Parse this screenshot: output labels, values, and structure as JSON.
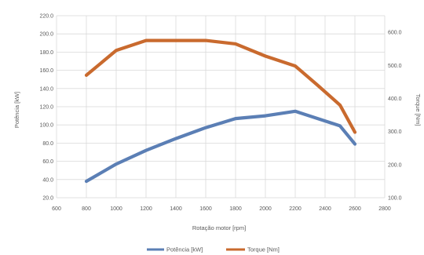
{
  "chart_data": {
    "type": "line",
    "title": "",
    "xlabel": "Rotação motor [rpm]",
    "ylabel_left": "Potência [kW]",
    "ylabel_right": "Torque [Nm]",
    "xlim": [
      600,
      2800
    ],
    "xticks": [
      "600",
      "800",
      "1000",
      "1200",
      "1400",
      "1600",
      "1800",
      "2000",
      "2200",
      "2400",
      "2600",
      "2800"
    ],
    "ylim_left": [
      20,
      220
    ],
    "yticks_left": [
      "20.0",
      "40.0",
      "60.0",
      "80.0",
      "100.0",
      "120.0",
      "140.0",
      "160.0",
      "180.0",
      "200.0",
      "220.0"
    ],
    "ylim_right": [
      100,
      650
    ],
    "yticks_right": [
      "100.0",
      "200.0",
      "300.0",
      "400.0",
      "500.0",
      "600.0"
    ],
    "grid": true,
    "legend_position": "bottom",
    "series": [
      {
        "name": "Potência [kW]",
        "axis": "left",
        "color": "#5b7fb5",
        "x": [
          800,
          1000,
          1200,
          1400,
          1600,
          1800,
          2000,
          2200,
          2500,
          2600
        ],
        "y": [
          38,
          57,
          72,
          85,
          97,
          107,
          110,
          115,
          99,
          79
        ]
      },
      {
        "name": "Torque [Nm]",
        "axis": "right",
        "color": "#c96a2e",
        "x": [
          800,
          1000,
          1200,
          1400,
          1600,
          1800,
          2000,
          2200,
          2350,
          2500,
          2600
        ],
        "y": [
          470,
          545,
          575,
          575,
          575,
          565,
          528,
          498,
          440,
          380,
          298
        ]
      }
    ]
  }
}
